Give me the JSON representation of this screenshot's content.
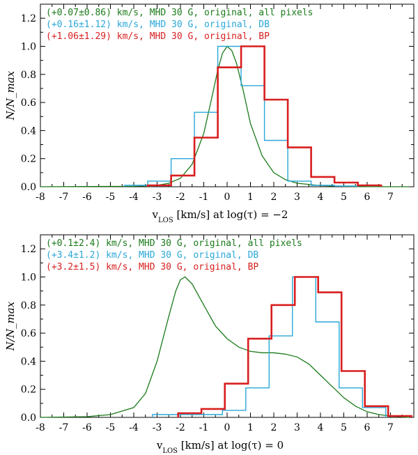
{
  "chart_data": [
    {
      "type": "line",
      "title": "",
      "xlabel": "v_LOS [km/s] at log(τ) = −2",
      "ylabel": "N/N_max",
      "xlim": [
        -8,
        8
      ],
      "ylim": [
        0,
        1.3
      ],
      "xticks": [
        -8,
        -7,
        -6,
        -5,
        -4,
        -3,
        -2,
        -1,
        0,
        1,
        2,
        3,
        4,
        5,
        6,
        7
      ],
      "yticks": [
        0.0,
        0.2,
        0.4,
        0.6,
        0.8,
        1.0,
        1.2
      ],
      "legend": [
        {
          "text": "(+0.07±0.86) km/s, MHD 30 G, original, all pixels",
          "color": "#1a7a1a"
        },
        {
          "text": "(+0.16±1.12) km/s, MHD 30 G, original, DB",
          "color": "#2aa7d8"
        },
        {
          "text": "(+1.06±1.29) km/s, MHD 30 G, original, BP",
          "color": "#d81e1e"
        }
      ],
      "series": [
        {
          "name": "all pixels",
          "style": "curve",
          "color": "#1a7a1a",
          "x": [
            -8,
            -4,
            -3,
            -2.5,
            -2,
            -1.5,
            -1,
            -0.7,
            -0.4,
            -0.2,
            0,
            0.2,
            0.4,
            0.7,
            1,
            1.5,
            2,
            2.5,
            3,
            4,
            5,
            6,
            7,
            7.8
          ],
          "y": [
            0,
            0.003,
            0.01,
            0.025,
            0.06,
            0.16,
            0.38,
            0.6,
            0.83,
            0.95,
            1.0,
            0.97,
            0.88,
            0.68,
            0.45,
            0.22,
            0.1,
            0.05,
            0.025,
            0.008,
            0.003,
            0.001,
            0,
            0
          ]
        },
        {
          "name": "DB",
          "style": "step",
          "color": "#2aa7d8",
          "edges": [
            -4.4,
            -3.4,
            -2.4,
            -1.4,
            -0.4,
            0.6,
            1.6,
            2.6,
            3.6,
            4.6,
            5.6
          ],
          "values": [
            0.01,
            0.04,
            0.2,
            0.53,
            1.0,
            0.72,
            0.33,
            0.04,
            0.01,
            0.005
          ]
        },
        {
          "name": "BP",
          "style": "step",
          "color": "#d81e1e",
          "edges": [
            -3.4,
            -2.4,
            -1.4,
            -0.4,
            0.6,
            1.6,
            2.6,
            3.6,
            4.6,
            5.6,
            6.6
          ],
          "values": [
            0.01,
            0.08,
            0.35,
            0.85,
            1.0,
            0.62,
            0.28,
            0.07,
            0.03,
            0.01
          ]
        }
      ]
    },
    {
      "type": "line",
      "title": "",
      "xlabel": "v_LOS [km/s] at log(τ) = 0",
      "ylabel": "N/N_max",
      "xlim": [
        -8,
        8
      ],
      "ylim": [
        0,
        1.3
      ],
      "xticks": [
        -8,
        -7,
        -6,
        -5,
        -4,
        -3,
        -2,
        -1,
        0,
        1,
        2,
        3,
        4,
        5,
        6,
        7
      ],
      "yticks": [
        0.0,
        0.2,
        0.4,
        0.6,
        0.8,
        1.0,
        1.2
      ],
      "legend": [
        {
          "text": "(+0.1±2.4) km/s, MHD 30 G, original, all pixels",
          "color": "#1a7a1a"
        },
        {
          "text": "(+3.4±1.2) km/s, MHD 30 G, original, DB",
          "color": "#2aa7d8"
        },
        {
          "text": "(+3.2±1.5) km/s, MHD 30 G, original, BP",
          "color": "#d81e1e"
        }
      ],
      "series": [
        {
          "name": "all pixels",
          "style": "curve",
          "color": "#1a7a1a",
          "x": [
            -8,
            -6,
            -5,
            -4,
            -3.5,
            -3,
            -2.5,
            -2.2,
            -2,
            -1.8,
            -1.5,
            -1,
            -0.5,
            0,
            0.5,
            1,
            1.5,
            2,
            2.5,
            3,
            3.5,
            4,
            4.5,
            5,
            5.5,
            6,
            6.5,
            7,
            7.8
          ],
          "y": [
            0,
            0.005,
            0.02,
            0.07,
            0.17,
            0.4,
            0.72,
            0.9,
            0.98,
            1.0,
            0.95,
            0.8,
            0.65,
            0.56,
            0.5,
            0.47,
            0.46,
            0.46,
            0.45,
            0.43,
            0.38,
            0.3,
            0.22,
            0.14,
            0.08,
            0.04,
            0.02,
            0.01,
            0
          ]
        },
        {
          "name": "DB",
          "style": "step",
          "color": "#2aa7d8",
          "edges": [
            -3.2,
            -2.2,
            -1.2,
            -0.2,
            0.8,
            1.8,
            2.8,
            3.8,
            4.8,
            5.8,
            6.8
          ],
          "values": [
            0.02,
            0.02,
            0.02,
            0.05,
            0.21,
            0.58,
            1.0,
            0.68,
            0.21,
            0.07
          ]
        },
        {
          "name": "BP",
          "style": "step",
          "color": "#d81e1e",
          "edges": [
            -2.1,
            -1.1,
            -0.1,
            0.9,
            1.9,
            2.9,
            3.9,
            4.9,
            5.9,
            6.9,
            7.9
          ],
          "values": [
            0.03,
            0.06,
            0.24,
            0.56,
            0.8,
            1.0,
            0.89,
            0.33,
            0.08,
            0.01
          ]
        }
      ]
    }
  ]
}
